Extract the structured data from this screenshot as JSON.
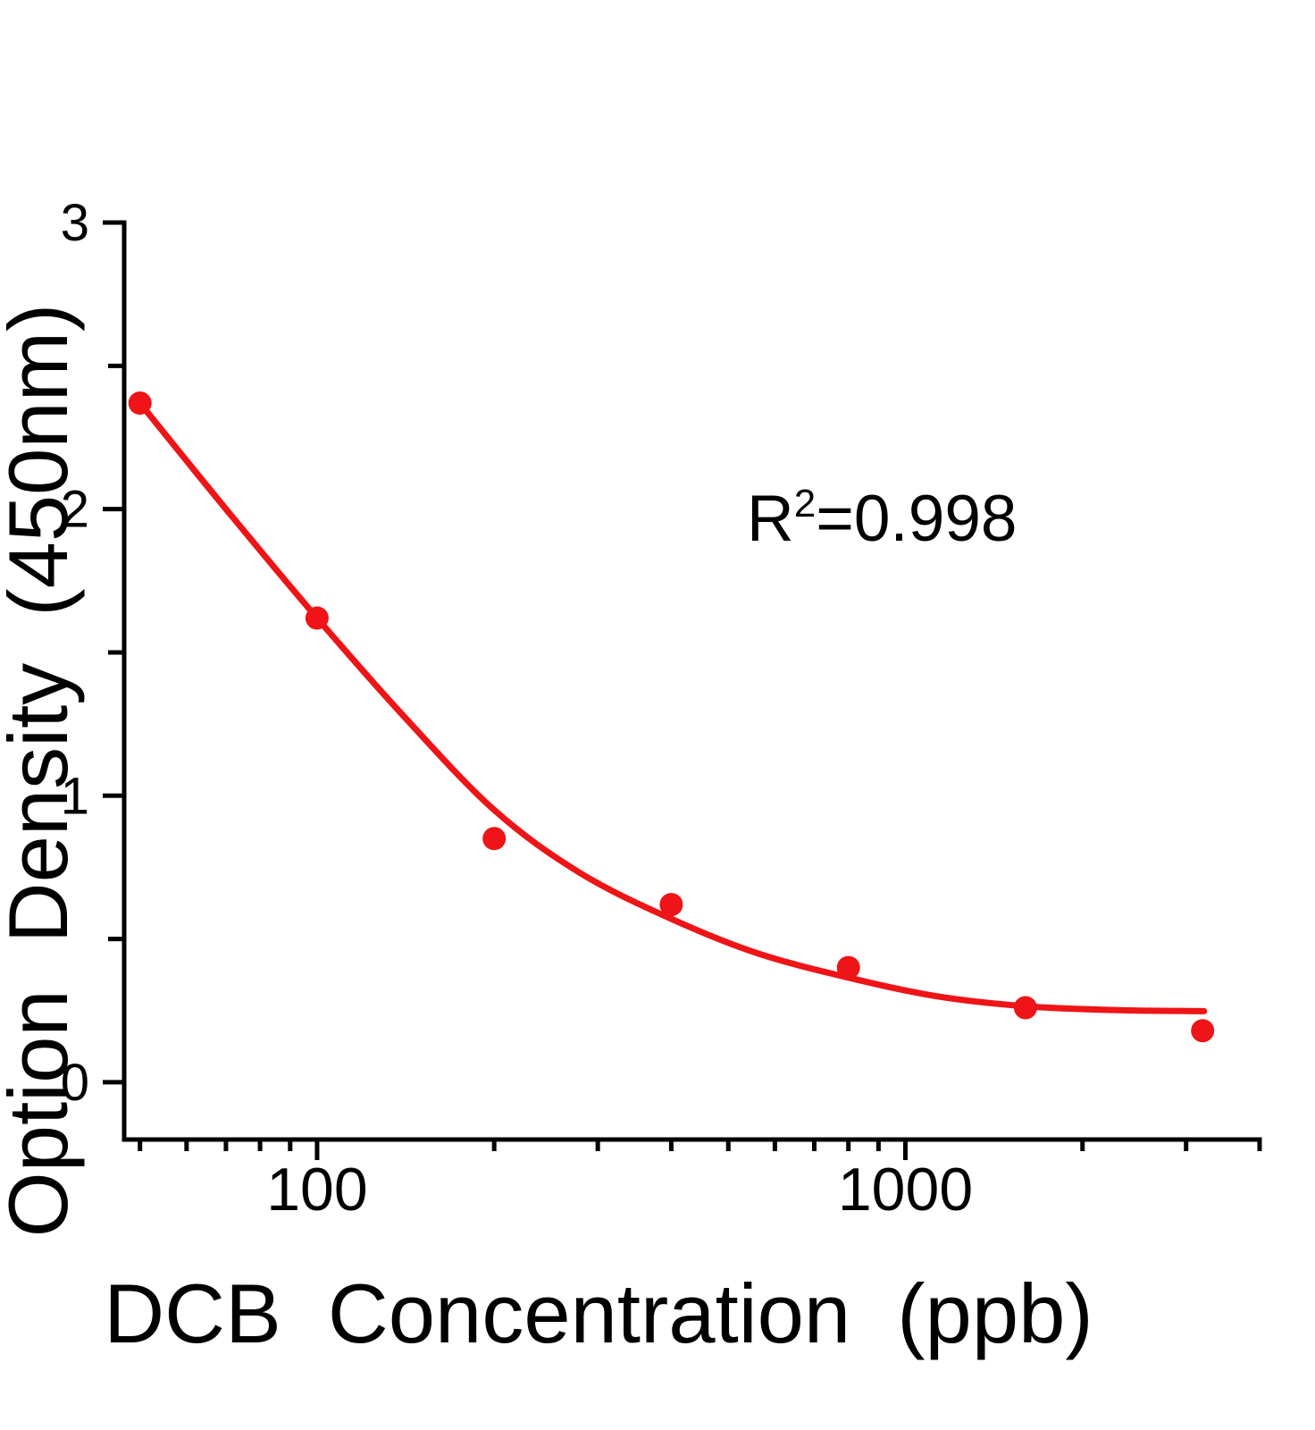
{
  "figure": {
    "background": "#ffffff"
  },
  "chart_data": {
    "type": "scatter",
    "title": "",
    "xlabel": "DCB Concentration (ppb)",
    "ylabel": "Option Density (450nm)",
    "x_scale": "log",
    "y_scale": "linear",
    "xlim": [
      47,
      4000
    ],
    "ylim": [
      -0.2,
      3
    ],
    "grid": false,
    "legend": "none",
    "colors": {
      "series_red": "#ee1417",
      "axis_black": "#000000"
    },
    "annotation": {
      "base": "R",
      "sup": "2",
      "rest": "=0.998"
    },
    "x_major_ticks": [
      {
        "value": 100,
        "label": "100"
      },
      {
        "value": 1000,
        "label": "1000"
      }
    ],
    "x_minor_ticks": [
      50,
      60,
      70,
      80,
      90,
      200,
      300,
      400,
      500,
      600,
      700,
      800,
      900,
      2000,
      3000,
      4000
    ],
    "y_major_ticks": [
      {
        "value": 0,
        "label": "0"
      },
      {
        "value": 1,
        "label": "1"
      },
      {
        "value": 2,
        "label": "2"
      },
      {
        "value": 3,
        "label": "3"
      }
    ],
    "y_minor_ticks": [
      0.5,
      1.5,
      2.5
    ],
    "series": [
      {
        "name": "standard-curve-points",
        "marker": "circle",
        "x": [
          50,
          100,
          200,
          400,
          800,
          1600,
          3200
        ],
        "y": [
          2.37,
          1.62,
          0.85,
          0.62,
          0.4,
          0.26,
          0.18
        ]
      }
    ],
    "fit_curve": {
      "name": "4pl-fit-line",
      "points": [
        [
          50,
          2.37
        ],
        [
          70,
          2.0
        ],
        [
          100,
          1.62
        ],
        [
          140,
          1.28
        ],
        [
          200,
          0.95
        ],
        [
          280,
          0.73
        ],
        [
          400,
          0.57
        ],
        [
          560,
          0.45
        ],
        [
          800,
          0.365
        ],
        [
          1130,
          0.3
        ],
        [
          1600,
          0.265
        ],
        [
          2260,
          0.252
        ],
        [
          3218,
          0.248
        ]
      ]
    }
  }
}
